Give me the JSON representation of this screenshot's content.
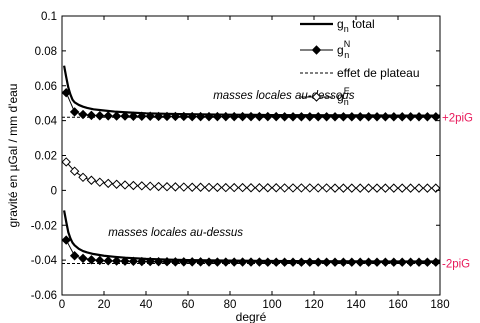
{
  "chart_data": {
    "type": "line",
    "xlabel": "degré",
    "ylabel": "gravité en µGal / mm d'eau",
    "xlim": [
      0,
      180
    ],
    "ylim": [
      -0.06,
      0.1
    ],
    "xticks": [
      0,
      20,
      40,
      60,
      80,
      100,
      120,
      140,
      160,
      180
    ],
    "yticks": [
      -0.06,
      -0.04,
      -0.02,
      0,
      0.02,
      0.04,
      0.06,
      0.08,
      0.1
    ],
    "ytick_labels": [
      "-0.06",
      "-0.04",
      "-0.02",
      "0",
      "0.02",
      "0.04",
      "0.06",
      "0.08",
      "0.1"
    ],
    "grid": false,
    "legend": {
      "placement": "top-right",
      "entries": [
        {
          "text": "g",
          "sub": "n",
          "sup": "",
          "suffix": " total",
          "style": "solid-thick"
        },
        {
          "text": "g",
          "sub": "n",
          "sup": "N",
          "suffix": "",
          "style": "filled-diamond"
        },
        {
          "text": "effet de plateau",
          "sub": "",
          "sup": "",
          "suffix": "",
          "style": "dashed"
        },
        {
          "text": "g",
          "sub": "n",
          "sup": "E",
          "suffix": "",
          "style": "open-diamond"
        }
      ]
    },
    "annotations": [
      {
        "text": "masses locales au-dessous",
        "x": 72,
        "y": 0.0525
      },
      {
        "text": "masses locales au-dessus",
        "x": 22,
        "y": -0.0262
      }
    ],
    "reference_lines": [
      {
        "label": "+2piG",
        "y": 0.0419,
        "color": "#e8195a"
      },
      {
        "label": "-2piG",
        "y": -0.0419,
        "color": "#e8195a"
      }
    ],
    "series": [
      {
        "style": "solid-thick",
        "x": [
          1,
          2,
          3,
          4,
          5,
          6,
          8,
          10,
          12,
          15,
          20,
          25,
          30,
          40,
          50,
          60,
          80,
          100,
          120,
          140,
          160,
          180
        ],
        "values": [
          0.0715,
          0.065,
          0.059,
          0.055,
          0.052,
          0.0505,
          0.049,
          0.048,
          0.0473,
          0.0465,
          0.0458,
          0.0452,
          0.0448,
          0.0442,
          0.0439,
          0.0437,
          0.0434,
          0.0432,
          0.0431,
          0.043,
          0.0429,
          0.0429
        ]
      },
      {
        "style": "filled-diamond",
        "x": [
          2,
          6,
          10,
          14,
          18,
          22,
          26,
          30,
          34,
          38,
          42,
          46,
          50,
          54,
          58,
          62,
          66,
          70,
          74,
          78,
          82,
          86,
          90,
          94,
          98,
          102,
          106,
          110,
          114,
          118,
          122,
          126,
          130,
          134,
          138,
          142,
          146,
          150,
          154,
          158,
          162,
          166,
          170,
          174,
          178
        ],
        "values": [
          0.056,
          0.045,
          0.0435,
          0.043,
          0.0428,
          0.0427,
          0.0426,
          0.0426,
          0.0425,
          0.0425,
          0.0425,
          0.0424,
          0.0424,
          0.0424,
          0.0424,
          0.0423,
          0.0423,
          0.0423,
          0.0423,
          0.0423,
          0.0423,
          0.0423,
          0.0423,
          0.0423,
          0.0423,
          0.0423,
          0.0422,
          0.0422,
          0.0422,
          0.0422,
          0.0422,
          0.0422,
          0.0422,
          0.0422,
          0.0422,
          0.0422,
          0.0422,
          0.0422,
          0.0422,
          0.0422,
          0.0422,
          0.0422,
          0.0422,
          0.0422,
          0.0422
        ]
      },
      {
        "style": "open-diamond",
        "x": [
          2,
          6,
          10,
          14,
          18,
          22,
          26,
          30,
          34,
          38,
          42,
          46,
          50,
          54,
          58,
          62,
          66,
          70,
          74,
          78,
          82,
          86,
          90,
          94,
          98,
          102,
          106,
          110,
          114,
          118,
          122,
          126,
          130,
          134,
          138,
          142,
          146,
          150,
          154,
          158,
          162,
          166,
          170,
          174,
          178
        ],
        "values": [
          0.0163,
          0.011,
          0.0075,
          0.0058,
          0.0047,
          0.004,
          0.0035,
          0.0031,
          0.0028,
          0.0026,
          0.0024,
          0.0022,
          0.0021,
          0.002,
          0.0019,
          0.0018,
          0.0018,
          0.0017,
          0.0017,
          0.0016,
          0.0016,
          0.0016,
          0.0015,
          0.0015,
          0.0015,
          0.0015,
          0.0014,
          0.0014,
          0.0014,
          0.0014,
          0.0014,
          0.0014,
          0.0013,
          0.0013,
          0.0013,
          0.0013,
          0.0013,
          0.0013,
          0.0013,
          0.0013,
          0.0013,
          0.0013,
          0.0013,
          0.0013,
          0.0013
        ]
      },
      {
        "style": "solid-thick",
        "x": [
          1,
          2,
          3,
          4,
          5,
          6,
          8,
          10,
          12,
          15,
          20,
          25,
          30,
          40,
          50,
          60,
          80,
          100,
          120,
          140,
          160,
          180
        ],
        "values": [
          -0.0115,
          -0.018,
          -0.024,
          -0.0275,
          -0.03,
          -0.0315,
          -0.0335,
          -0.0348,
          -0.0356,
          -0.0365,
          -0.0375,
          -0.0381,
          -0.0386,
          -0.0393,
          -0.0397,
          -0.04,
          -0.0403,
          -0.0405,
          -0.0406,
          -0.0407,
          -0.0408,
          -0.0408
        ]
      },
      {
        "style": "filled-diamond",
        "x": [
          2,
          6,
          10,
          14,
          18,
          22,
          26,
          30,
          34,
          38,
          42,
          46,
          50,
          54,
          58,
          62,
          66,
          70,
          74,
          78,
          82,
          86,
          90,
          94,
          98,
          102,
          106,
          110,
          114,
          118,
          122,
          126,
          130,
          134,
          138,
          142,
          146,
          150,
          154,
          158,
          162,
          166,
          170,
          174,
          178
        ],
        "values": [
          -0.0285,
          -0.0375,
          -0.039,
          -0.0398,
          -0.0402,
          -0.0404,
          -0.0405,
          -0.0406,
          -0.0407,
          -0.0408,
          -0.0408,
          -0.0409,
          -0.0409,
          -0.041,
          -0.041,
          -0.041,
          -0.041,
          -0.0411,
          -0.0411,
          -0.0411,
          -0.0411,
          -0.0411,
          -0.0411,
          -0.0411,
          -0.0412,
          -0.0412,
          -0.0412,
          -0.0412,
          -0.0412,
          -0.0412,
          -0.0412,
          -0.0412,
          -0.0412,
          -0.0412,
          -0.0412,
          -0.0412,
          -0.0412,
          -0.0412,
          -0.0412,
          -0.0412,
          -0.0412,
          -0.0412,
          -0.0412,
          -0.0412,
          -0.0412
        ]
      }
    ],
    "plateau_lines": [
      0.0419,
      -0.0419
    ]
  }
}
